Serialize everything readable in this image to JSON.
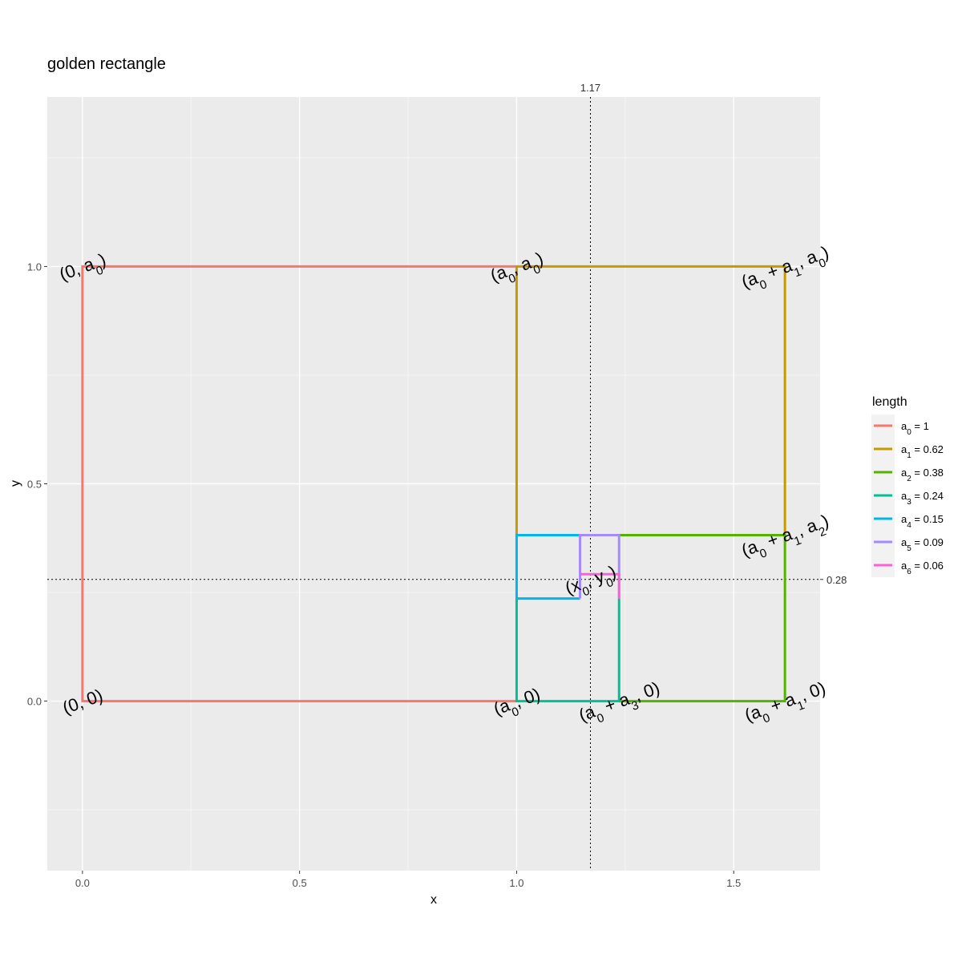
{
  "chart_data": {
    "type": "line",
    "title": "golden rectangle",
    "xlabel": "x",
    "ylabel": "y",
    "xlim": [
      -0.081,
      1.699
    ],
    "ylim": [
      -0.39,
      1.39
    ],
    "xticks": [
      0.0,
      0.5,
      1.0,
      1.5
    ],
    "xtick_labels": [
      "0.0",
      "0.5",
      "1.0",
      "1.5"
    ],
    "yticks": [
      0.0,
      0.5,
      1.0
    ],
    "ytick_labels": [
      "0.0",
      "0.5",
      "1.0"
    ],
    "grid": true,
    "legend": {
      "title": "length",
      "placement": "right",
      "entries": [
        {
          "sym": "a",
          "sub": "0",
          "value": "1",
          "color": "#F8766D"
        },
        {
          "sym": "a",
          "sub": "1",
          "value": "0.62",
          "color": "#C49A00"
        },
        {
          "sym": "a",
          "sub": "2",
          "value": "0.38",
          "color": "#53B400"
        },
        {
          "sym": "a",
          "sub": "3",
          "value": "0.24",
          "color": "#00C094"
        },
        {
          "sym": "a",
          "sub": "4",
          "value": "0.15",
          "color": "#00B6EB"
        },
        {
          "sym": "a",
          "sub": "5",
          "value": "0.09",
          "color": "#A58AFF"
        },
        {
          "sym": "a",
          "sub": "6",
          "value": "0.06",
          "color": "#FB61D7"
        }
      ]
    },
    "series": [
      {
        "color": "#F8766D",
        "points": [
          [
            1.0,
            1.0
          ],
          [
            0.0,
            1.0
          ],
          [
            0.0,
            0.0
          ],
          [
            1.0,
            0.0
          ]
        ]
      },
      {
        "color": "#C49A00",
        "points": [
          [
            1.0,
            0.382
          ],
          [
            1.0,
            1.0
          ],
          [
            1.618,
            1.0
          ],
          [
            1.618,
            0.382
          ]
        ]
      },
      {
        "color": "#53B400",
        "points": [
          [
            1.236,
            0.382
          ],
          [
            1.618,
            0.382
          ],
          [
            1.618,
            0.0
          ],
          [
            1.236,
            0.0
          ]
        ]
      },
      {
        "color": "#00C094",
        "points": [
          [
            1.236,
            0.236
          ],
          [
            1.236,
            0.0
          ],
          [
            1.0,
            0.0
          ],
          [
            1.0,
            0.236
          ]
        ]
      },
      {
        "color": "#00B6EB",
        "points": [
          [
            1.146,
            0.236
          ],
          [
            1.0,
            0.236
          ],
          [
            1.0,
            0.382
          ],
          [
            1.146,
            0.382
          ]
        ]
      },
      {
        "color": "#A58AFF",
        "points": [
          [
            1.146,
            0.236
          ],
          [
            1.146,
            0.382
          ],
          [
            1.236,
            0.382
          ],
          [
            1.236,
            0.236
          ]
        ]
      },
      {
        "color": "#FB61D7",
        "points": [
          [
            1.146,
            0.292
          ],
          [
            1.202,
            0.292
          ],
          [
            1.236,
            0.292
          ],
          [
            1.236,
            0.236
          ]
        ]
      }
    ],
    "reference_lines": [
      {
        "axis": "x",
        "value": 1.17,
        "label": "1.17"
      },
      {
        "axis": "y",
        "value": 0.28,
        "label": "0.28"
      }
    ],
    "annotations": [
      {
        "x": 0.0,
        "y": 1.0,
        "parts": [
          {
            "t": "(0, "
          },
          {
            "t": "a"
          },
          {
            "t": "0",
            "sub": true
          },
          {
            "t": ")"
          }
        ]
      },
      {
        "x": 1.0,
        "y": 1.0,
        "parts": [
          {
            "t": "("
          },
          {
            "t": "a"
          },
          {
            "t": "0",
            "sub": true
          },
          {
            "t": ", "
          },
          {
            "t": "a"
          },
          {
            "t": "0",
            "sub": true
          },
          {
            "t": ")"
          }
        ]
      },
      {
        "x": 1.618,
        "y": 1.0,
        "parts": [
          {
            "t": "("
          },
          {
            "t": "a"
          },
          {
            "t": "0",
            "sub": true
          },
          {
            "t": " + "
          },
          {
            "t": "a"
          },
          {
            "t": "1",
            "sub": true
          },
          {
            "t": ", "
          },
          {
            "t": "a"
          },
          {
            "t": "0",
            "sub": true
          },
          {
            "t": ")"
          }
        ]
      },
      {
        "x": 1.618,
        "y": 0.382,
        "parts": [
          {
            "t": "("
          },
          {
            "t": "a"
          },
          {
            "t": "0",
            "sub": true
          },
          {
            "t": " + "
          },
          {
            "t": "a"
          },
          {
            "t": "1",
            "sub": true
          },
          {
            "t": ", "
          },
          {
            "t": "a"
          },
          {
            "t": "2",
            "sub": true
          },
          {
            "t": ")"
          }
        ]
      },
      {
        "x": 1.17,
        "y": 0.28,
        "parts": [
          {
            "t": "("
          },
          {
            "t": "x"
          },
          {
            "t": "0",
            "sub": true
          },
          {
            "t": ", "
          },
          {
            "t": "y"
          },
          {
            "t": "0",
            "sub": true
          },
          {
            "t": ")"
          }
        ]
      },
      {
        "x": 0.0,
        "y": 0.0,
        "parts": [
          {
            "t": "(0, 0)"
          }
        ]
      },
      {
        "x": 1.0,
        "y": 0.0,
        "parts": [
          {
            "t": "("
          },
          {
            "t": "a"
          },
          {
            "t": "0",
            "sub": true
          },
          {
            "t": ", 0)"
          }
        ]
      },
      {
        "x": 1.236,
        "y": 0.0,
        "parts": [
          {
            "t": "("
          },
          {
            "t": "a"
          },
          {
            "t": "0",
            "sub": true
          },
          {
            "t": " + "
          },
          {
            "t": "a"
          },
          {
            "t": "3",
            "sub": true
          },
          {
            "t": ", 0)"
          }
        ]
      },
      {
        "x": 1.618,
        "y": 0.0,
        "parts": [
          {
            "t": "("
          },
          {
            "t": "a"
          },
          {
            "t": "0",
            "sub": true
          },
          {
            "t": " + "
          },
          {
            "t": "a"
          },
          {
            "t": "1",
            "sub": true
          },
          {
            "t": ", 0)"
          }
        ]
      }
    ],
    "colors": {
      "panel_background": "#EBEBEB",
      "grid_major": "#FFFFFF",
      "grid_minor": "#F5F5F5",
      "reference_line": "#000000"
    }
  }
}
